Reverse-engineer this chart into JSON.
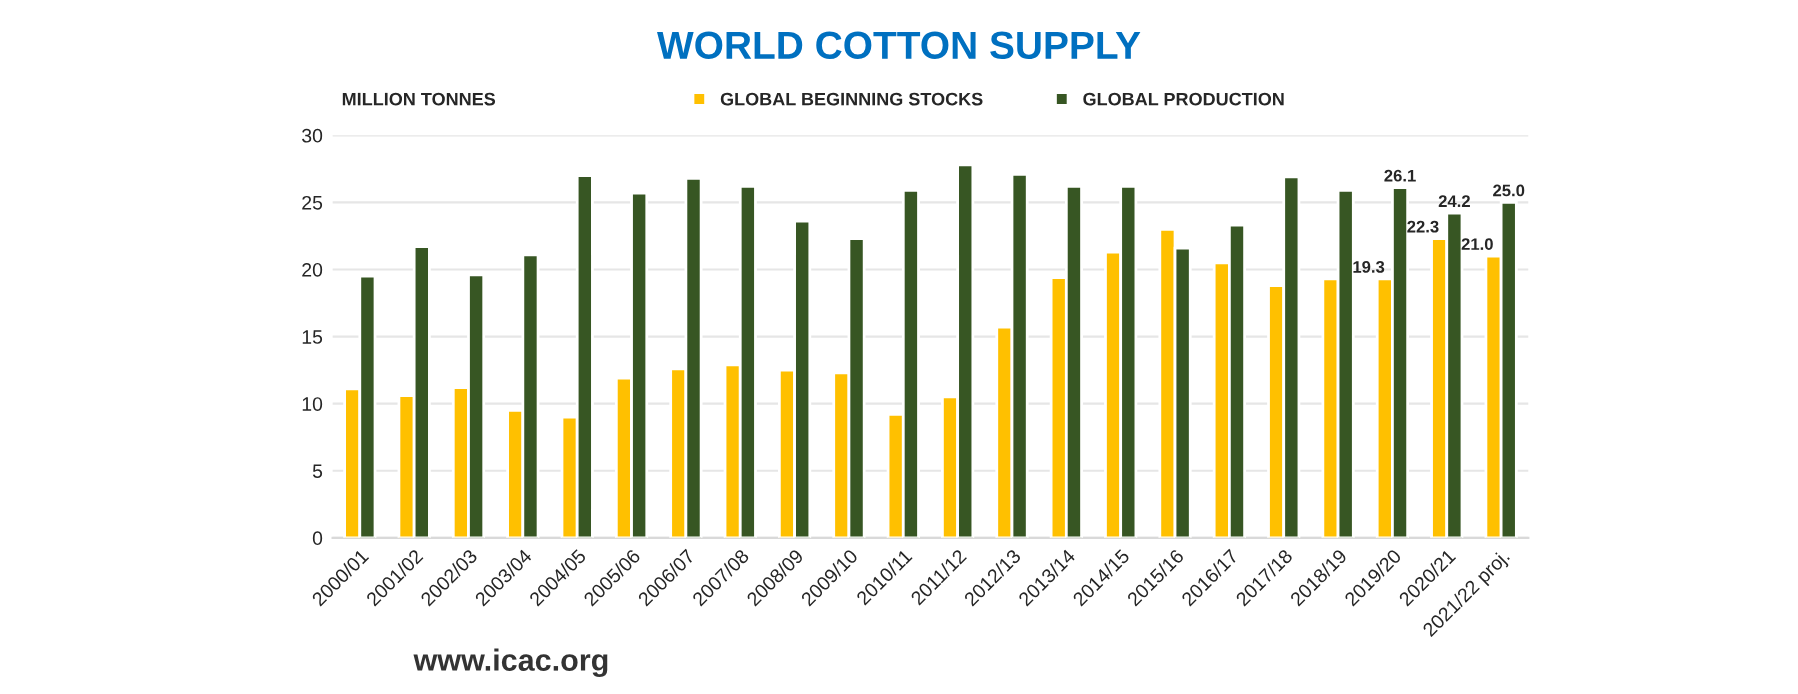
{
  "chart_data": {
    "type": "bar",
    "title": "WORLD COTTON SUPPLY",
    "ylabel": "MILLION TONNES",
    "categories": [
      "2000/01",
      "2001/02",
      "2002/03",
      "2003/04",
      "2004/05",
      "2005/06",
      "2006/07",
      "2007/08",
      "2008/09",
      "2009/10",
      "2010/11",
      "2011/12",
      "2012/13",
      "2013/14",
      "2014/15",
      "2015/16",
      "2016/17",
      "2017/18",
      "2018/19",
      "2019/20",
      "2020/21",
      "2021/22 proj."
    ],
    "series": [
      {
        "name": "GLOBAL BEGINNING STOCKS",
        "color": "#ffc000",
        "values": [
          11.1,
          10.6,
          11.2,
          9.5,
          9.0,
          11.9,
          12.6,
          12.9,
          12.5,
          12.3,
          9.2,
          10.5,
          15.7,
          19.4,
          21.3,
          23.0,
          20.5,
          18.8,
          19.3,
          19.3,
          22.3,
          21.0
        ],
        "value_labels": [
          null,
          null,
          null,
          null,
          null,
          null,
          null,
          null,
          null,
          null,
          null,
          null,
          null,
          null,
          null,
          null,
          null,
          null,
          null,
          "19.3",
          "22.3",
          "21.0"
        ]
      },
      {
        "name": "GLOBAL PRODUCTION",
        "color": "#375623",
        "values": [
          19.5,
          21.7,
          19.6,
          21.1,
          27.0,
          25.7,
          26.8,
          26.2,
          23.6,
          22.3,
          25.9,
          27.8,
          27.1,
          26.2,
          26.2,
          21.6,
          23.3,
          26.9,
          25.9,
          26.1,
          24.2,
          25.0
        ],
        "value_labels": [
          null,
          null,
          null,
          null,
          null,
          null,
          null,
          null,
          null,
          null,
          null,
          null,
          null,
          null,
          null,
          null,
          null,
          null,
          null,
          "26.1",
          "24.2",
          "25.0"
        ]
      }
    ],
    "ylim": [
      0,
      30
    ],
    "yticks": [
      0,
      5,
      10,
      15,
      20,
      25,
      30
    ],
    "grid": "y",
    "legend": "top",
    "annotations": [
      "www.icac.org"
    ]
  }
}
